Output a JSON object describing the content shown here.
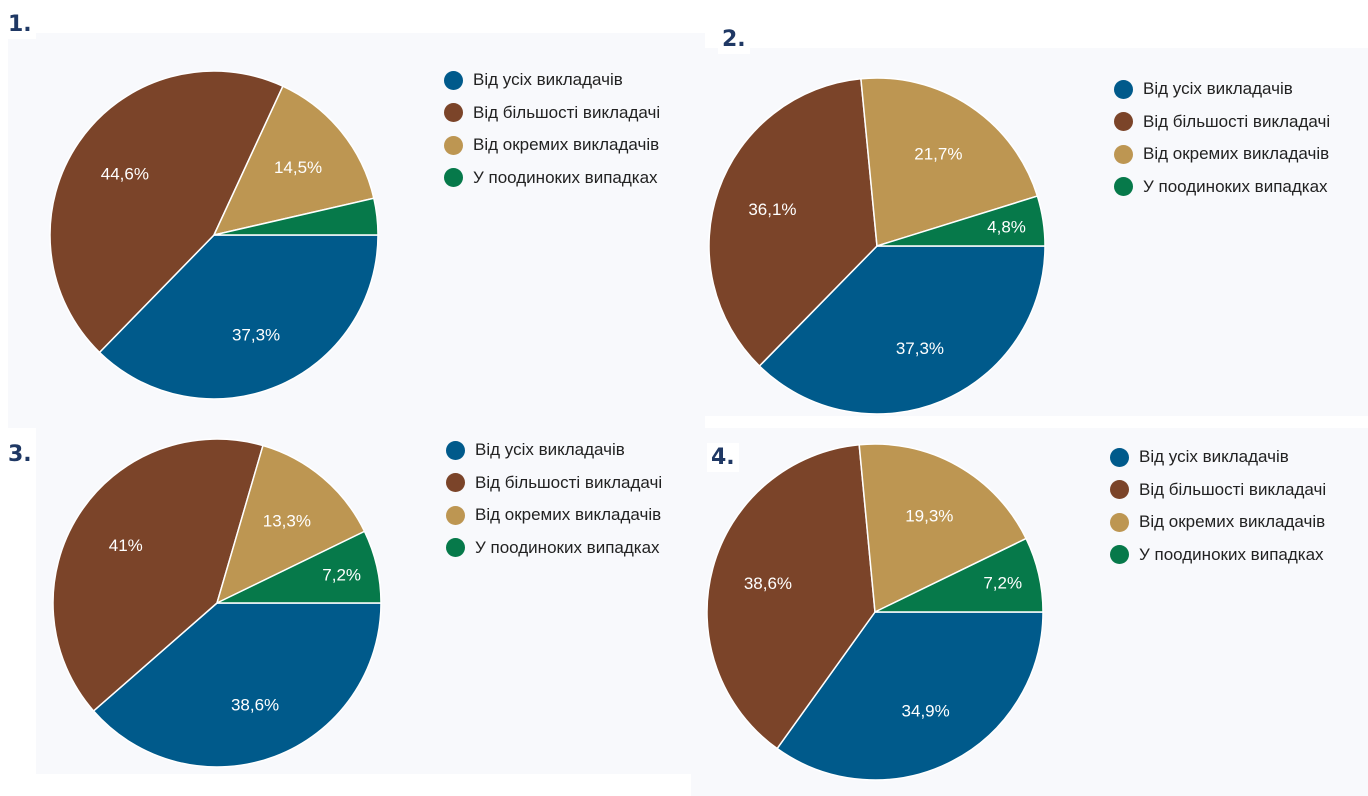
{
  "colors": {
    "all": "#005a8b",
    "most": "#7b4429",
    "some": "#bd9652",
    "rare": "#06794a"
  },
  "chart_data": [
    {
      "type": "pie",
      "panel_label": "1.",
      "legend": [
        "Від усіх викладачів",
        "Від більшості викладачі",
        "Від окремих викладачів",
        "У поодиноких випадках"
      ],
      "slices": [
        {
          "key": "all",
          "value": 37.3,
          "label": "37,3%"
        },
        {
          "key": "most",
          "value": 44.6,
          "label": "44,6%"
        },
        {
          "key": "some",
          "value": 14.5,
          "label": "14,5%"
        },
        {
          "key": "rare",
          "value": 3.6,
          "label": ""
        }
      ]
    },
    {
      "type": "pie",
      "panel_label": "2.",
      "legend": [
        "Від усіх викладачів",
        "Від більшості викладачі",
        "Від окремих викладачів",
        "У поодиноких випадках"
      ],
      "slices": [
        {
          "key": "all",
          "value": 37.3,
          "label": "37,3%"
        },
        {
          "key": "most",
          "value": 36.1,
          "label": "36,1%"
        },
        {
          "key": "some",
          "value": 21.7,
          "label": "21,7%"
        },
        {
          "key": "rare",
          "value": 4.8,
          "label": "4,8%"
        }
      ]
    },
    {
      "type": "pie",
      "panel_label": "3.",
      "legend": [
        "Від усіх викладачів",
        "Від більшості викладачі",
        "Від окремих викладачів",
        "У поодиноких випадках"
      ],
      "slices": [
        {
          "key": "all",
          "value": 38.6,
          "label": "38,6%"
        },
        {
          "key": "most",
          "value": 41,
          "label": "41%"
        },
        {
          "key": "some",
          "value": 13.3,
          "label": "13,3%"
        },
        {
          "key": "rare",
          "value": 7.2,
          "label": "7,2%"
        }
      ]
    },
    {
      "type": "pie",
      "panel_label": "4.",
      "legend": [
        "Від усіх викладачів",
        "Від більшості викладачі",
        "Від окремих викладачів",
        "У поодиноких випадках"
      ],
      "slices": [
        {
          "key": "all",
          "value": 34.9,
          "label": "34,9%"
        },
        {
          "key": "most",
          "value": 38.6,
          "label": "38,6%"
        },
        {
          "key": "some",
          "value": 19.3,
          "label": "19,3%"
        },
        {
          "key": "rare",
          "value": 7.2,
          "label": "7,2%"
        }
      ]
    }
  ]
}
